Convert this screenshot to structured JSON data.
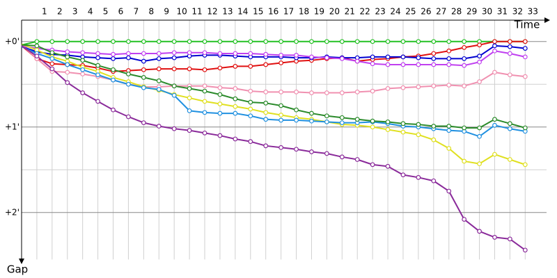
{
  "chart_data": {
    "type": "line",
    "x_label": "Time",
    "y_label": "Gap",
    "x": [
      -0.5,
      0.5,
      1.5,
      2.5,
      3.5,
      4.5,
      5.5,
      6.5,
      7.5,
      8.5,
      9.5,
      10.5,
      11.5,
      12.5,
      13.5,
      14.5,
      15.5,
      16.5,
      17.5,
      18.5,
      19.5,
      20.5,
      21.5,
      22.5,
      23.5,
      24.5,
      25.5,
      26.5,
      27.5,
      28.5,
      29.5,
      30.5,
      31.5,
      32.5
    ],
    "xlim": [
      -0.5,
      33.9
    ],
    "xticks": [
      1,
      2,
      3,
      4,
      5,
      6,
      7,
      8,
      9,
      10,
      11,
      12,
      13,
      14,
      15,
      16,
      17,
      18,
      19,
      20,
      21,
      22,
      23,
      24,
      25,
      26,
      27,
      28,
      29,
      30,
      31,
      32,
      33
    ],
    "ylim": [
      -0.25,
      2.55
    ],
    "yticks": [
      {
        "value": 0,
        "label": "+0'"
      },
      {
        "value": 1,
        "label": "+1'"
      },
      {
        "value": 2,
        "label": "+2'"
      }
    ],
    "yminor": [
      0.5,
      1.5
    ],
    "grid": true,
    "series": [
      {
        "color": "#22c022",
        "values": [
          0.04,
          0,
          0,
          0,
          0,
          0,
          0,
          0,
          0,
          0,
          0,
          0,
          0,
          0,
          0,
          0,
          0,
          0,
          0,
          0,
          0,
          0,
          0,
          0,
          0,
          0,
          0,
          0,
          0,
          0,
          0,
          0,
          0,
          0
        ]
      },
      {
        "color": "#e01010",
        "values": [
          0.05,
          0.2,
          0.26,
          0.27,
          0.28,
          0.31,
          0.35,
          0.34,
          0.33,
          0.32,
          0.32,
          0.32,
          0.33,
          0.31,
          0.29,
          0.29,
          0.27,
          0.25,
          0.23,
          0.22,
          0.2,
          0.19,
          0.23,
          0.21,
          0.2,
          0.18,
          0.17,
          0.14,
          0.11,
          0.07,
          0.04,
          0.0,
          0.0,
          0.0
        ]
      },
      {
        "color": "#0000d0",
        "values": [
          0.06,
          0.12,
          0.15,
          0.16,
          0.18,
          0.19,
          0.2,
          0.19,
          0.23,
          0.2,
          0.19,
          0.17,
          0.16,
          0.16,
          0.17,
          0.18,
          0.18,
          0.18,
          0.19,
          0.19,
          0.18,
          0.19,
          0.19,
          0.18,
          0.18,
          0.18,
          0.19,
          0.2,
          0.2,
          0.2,
          0.17,
          0.05,
          0.06,
          0.08
        ]
      },
      {
        "color": "#c040f0",
        "values": [
          0.05,
          0.08,
          0.1,
          0.12,
          0.13,
          0.14,
          0.15,
          0.14,
          0.14,
          0.14,
          0.13,
          0.13,
          0.13,
          0.14,
          0.14,
          0.14,
          0.15,
          0.16,
          0.16,
          0.18,
          0.19,
          0.2,
          0.23,
          0.26,
          0.27,
          0.27,
          0.27,
          0.27,
          0.27,
          0.28,
          0.24,
          0.11,
          0.14,
          0.18
        ]
      },
      {
        "color": "#f090b0",
        "values": [
          0.04,
          0.2,
          0.35,
          0.36,
          0.38,
          0.41,
          0.45,
          0.5,
          0.53,
          0.53,
          0.52,
          0.52,
          0.52,
          0.54,
          0.55,
          0.58,
          0.59,
          0.59,
          0.59,
          0.6,
          0.6,
          0.6,
          0.59,
          0.58,
          0.55,
          0.54,
          0.53,
          0.52,
          0.51,
          0.52,
          0.47,
          0.36,
          0.39,
          0.41
        ]
      },
      {
        "color": "#e0e020",
        "values": [
          0.03,
          0.1,
          0.18,
          0.23,
          0.3,
          0.35,
          0.42,
          0.47,
          0.53,
          0.57,
          0.62,
          0.66,
          0.7,
          0.73,
          0.76,
          0.79,
          0.83,
          0.86,
          0.89,
          0.91,
          0.94,
          0.97,
          0.98,
          1.0,
          1.03,
          1.06,
          1.09,
          1.15,
          1.25,
          1.4,
          1.43,
          1.32,
          1.38,
          1.44
        ]
      },
      {
        "color": "#2090e0",
        "values": [
          0.06,
          0.14,
          0.2,
          0.27,
          0.33,
          0.39,
          0.45,
          0.5,
          0.54,
          0.56,
          0.63,
          0.81,
          0.83,
          0.84,
          0.84,
          0.87,
          0.91,
          0.92,
          0.92,
          0.93,
          0.94,
          0.95,
          0.95,
          0.94,
          0.96,
          0.99,
          1.0,
          1.02,
          1.04,
          1.05,
          1.11,
          0.98,
          1.02,
          1.05
        ]
      },
      {
        "color": "#2a8a2a",
        "values": [
          0.04,
          0.05,
          0.13,
          0.18,
          0.22,
          0.28,
          0.33,
          0.38,
          0.42,
          0.46,
          0.52,
          0.55,
          0.58,
          0.62,
          0.67,
          0.71,
          0.72,
          0.75,
          0.8,
          0.84,
          0.87,
          0.89,
          0.91,
          0.93,
          0.94,
          0.96,
          0.97,
          0.99,
          0.99,
          1.01,
          1.01,
          0.91,
          0.96,
          1.01
        ]
      },
      {
        "color": "#8a2a9a",
        "values": [
          0.05,
          0.17,
          0.32,
          0.48,
          0.6,
          0.7,
          0.8,
          0.88,
          0.95,
          0.99,
          1.02,
          1.04,
          1.07,
          1.1,
          1.14,
          1.17,
          1.22,
          1.24,
          1.26,
          1.29,
          1.31,
          1.35,
          1.38,
          1.44,
          1.46,
          1.56,
          1.59,
          1.63,
          1.75,
          2.08,
          2.22,
          2.29,
          2.31,
          2.44
        ]
      }
    ]
  }
}
